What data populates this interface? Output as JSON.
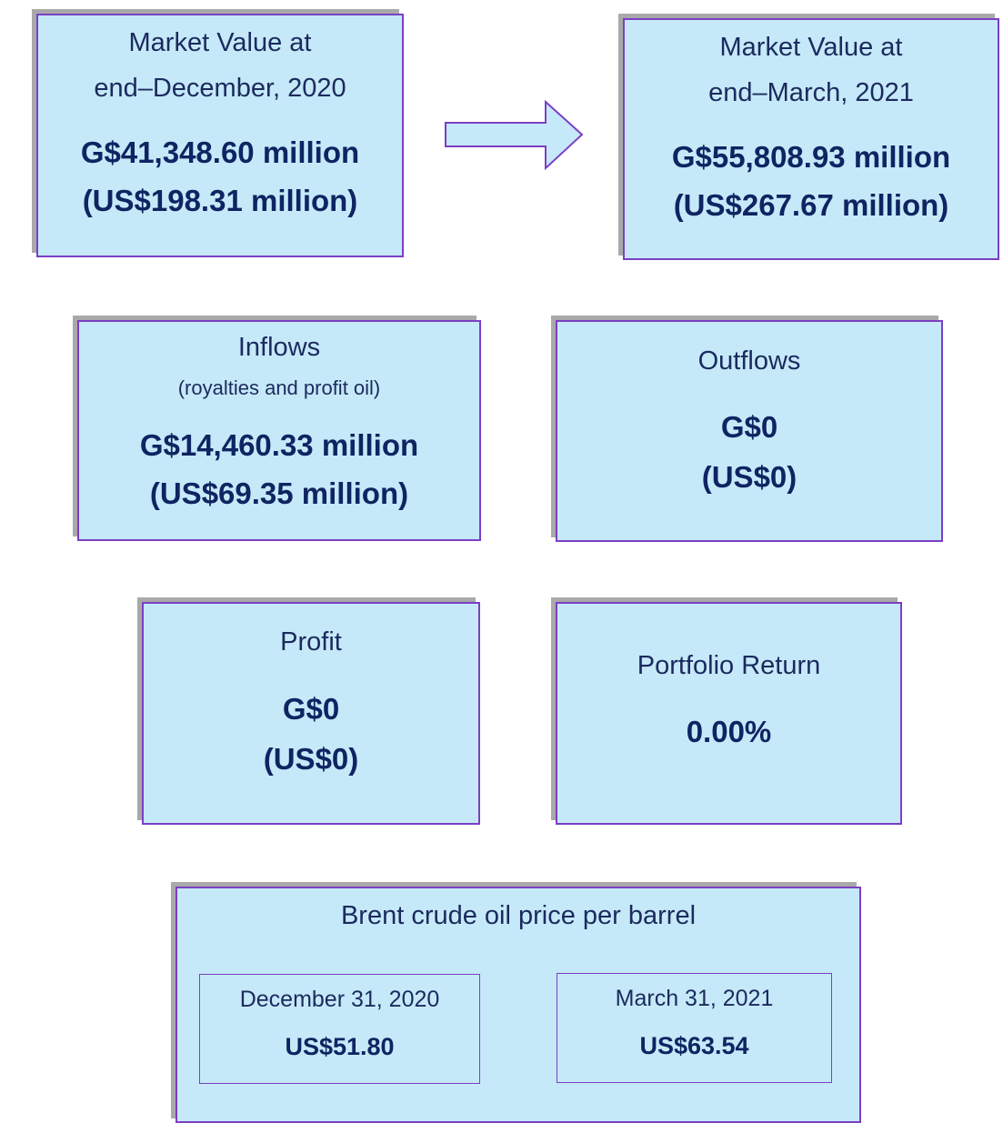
{
  "market_value_start": {
    "title": [
      "Market Value at",
      "end–December, 2020"
    ],
    "lines": [
      "G$41,348.60 million",
      "(US$198.31 million)"
    ]
  },
  "market_value_end": {
    "title": [
      "Market Value at",
      "end–March, 2021"
    ],
    "lines": [
      "G$55,808.93 million",
      "(US$267.67 million)"
    ]
  },
  "inflows": {
    "title": "Inflows",
    "subtitle": "(royalties and profit oil)",
    "lines": [
      "G$14,460.33 million",
      "(US$69.35 million)"
    ]
  },
  "outflows": {
    "title": "Outflows",
    "lines": [
      "G$0",
      "(US$0)"
    ]
  },
  "profit": {
    "title": "Profit",
    "lines": [
      "G$0",
      "(US$0)"
    ]
  },
  "portfolio_return": {
    "title": "Portfolio Return",
    "lines": [
      "0.00%"
    ]
  },
  "brent": {
    "title": "Brent crude oil price per barrel",
    "start": {
      "date": "December 31, 2020",
      "price": "US$51.80"
    },
    "end": {
      "date": "March 31, 2021",
      "price": "US$63.54"
    }
  }
}
